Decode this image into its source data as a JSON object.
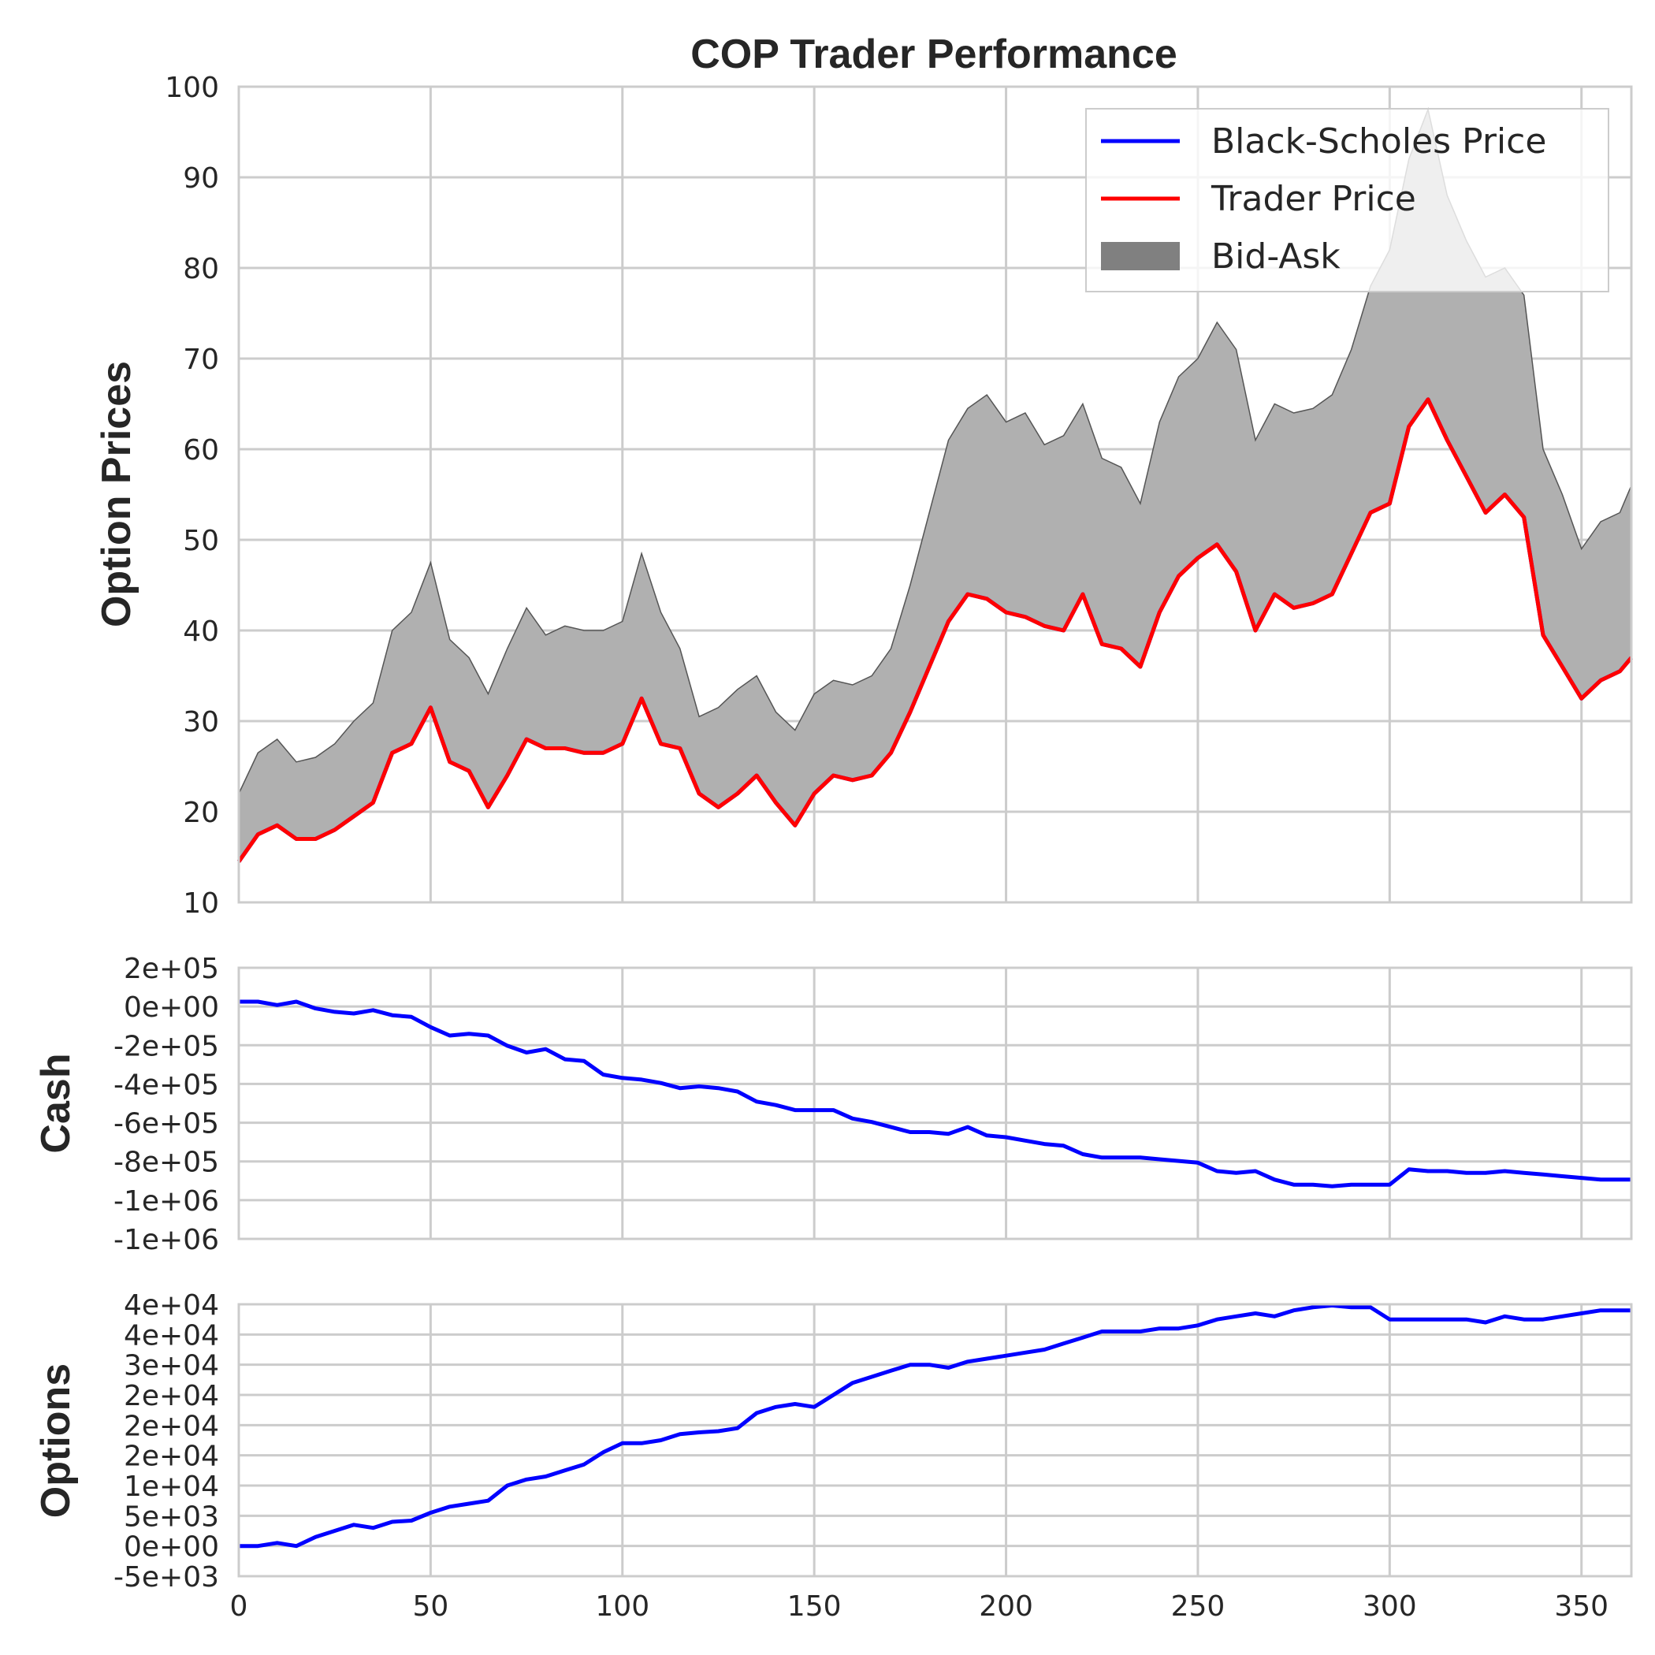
{
  "chart_data": [
    {
      "type": "line",
      "title": "COP Trader Performance",
      "ylabel": "Option Prices",
      "xlim": [
        0,
        363
      ],
      "ylim": [
        10,
        100
      ],
      "grid": true,
      "legend_position": "top-right",
      "x_ticks": [
        "0",
        "50",
        "100",
        "150",
        "200",
        "250",
        "300",
        "350"
      ],
      "y_ticks": [
        "10",
        "20",
        "30",
        "40",
        "50",
        "60",
        "70",
        "80",
        "90",
        "100"
      ],
      "x": [
        0,
        5,
        10,
        15,
        20,
        25,
        30,
        35,
        40,
        45,
        50,
        55,
        60,
        65,
        70,
        75,
        80,
        85,
        90,
        95,
        100,
        105,
        110,
        115,
        120,
        125,
        130,
        135,
        140,
        145,
        150,
        155,
        160,
        165,
        170,
        175,
        180,
        185,
        190,
        195,
        200,
        205,
        210,
        215,
        220,
        225,
        230,
        235,
        240,
        245,
        250,
        255,
        260,
        265,
        270,
        275,
        280,
        285,
        290,
        295,
        300,
        305,
        310,
        315,
        320,
        325,
        330,
        335,
        340,
        345,
        350,
        355,
        360,
        363
      ],
      "series": [
        {
          "name": "Black-Scholes Price",
          "color": "#0000ff",
          "values": [
            14.5,
            17.5,
            18.5,
            17.0,
            17.0,
            18.0,
            19.5,
            21.0,
            26.5,
            27.5,
            31.5,
            25.5,
            24.5,
            20.5,
            24.0,
            28.0,
            27.0,
            27.0,
            26.5,
            26.5,
            27.5,
            32.5,
            27.5,
            27.0,
            22.0,
            20.5,
            22.0,
            24.0,
            21.0,
            18.5,
            22.0,
            24.0,
            23.5,
            24.0,
            26.5,
            31.0,
            36.0,
            41.0,
            44.0,
            43.5,
            42.0,
            41.5,
            40.5,
            40.0,
            44.0,
            38.5,
            38.0,
            36.0,
            42.0,
            46.0,
            48.0,
            49.5,
            46.5,
            40.0,
            44.0,
            42.5,
            43.0,
            44.0,
            48.5,
            53.0,
            54.0,
            62.5,
            65.5,
            61.0,
            57.0,
            53.0,
            55.0,
            52.5,
            39.5,
            36.0,
            32.5,
            34.5,
            35.5,
            37.0
          ]
        },
        {
          "name": "Trader Price",
          "color": "#ff0000",
          "values": [
            14.5,
            17.5,
            18.5,
            17.0,
            17.0,
            18.0,
            19.5,
            21.0,
            26.5,
            27.5,
            31.5,
            25.5,
            24.5,
            20.5,
            24.0,
            28.0,
            27.0,
            27.0,
            26.5,
            26.5,
            27.5,
            32.5,
            27.5,
            27.0,
            22.0,
            20.5,
            22.0,
            24.0,
            21.0,
            18.5,
            22.0,
            24.0,
            23.5,
            24.0,
            26.5,
            31.0,
            36.0,
            41.0,
            44.0,
            43.5,
            42.0,
            41.5,
            40.5,
            40.0,
            44.0,
            38.5,
            38.0,
            36.0,
            42.0,
            46.0,
            48.0,
            49.5,
            46.5,
            40.0,
            44.0,
            42.5,
            43.0,
            44.0,
            48.5,
            53.0,
            54.0,
            62.5,
            65.5,
            61.0,
            57.0,
            53.0,
            55.0,
            52.5,
            39.5,
            36.0,
            32.5,
            34.5,
            35.5,
            37.0
          ]
        },
        {
          "name": "Bid-Ask",
          "color": "#808080",
          "type": "area",
          "lower": [
            14.5,
            17.5,
            18.5,
            17.0,
            17.0,
            18.0,
            19.5,
            21.0,
            26.5,
            27.5,
            31.5,
            25.5,
            24.5,
            20.5,
            24.0,
            28.0,
            27.0,
            27.0,
            26.5,
            26.5,
            27.5,
            32.5,
            27.5,
            27.0,
            22.0,
            20.5,
            22.0,
            24.0,
            21.0,
            18.5,
            22.0,
            24.0,
            23.5,
            24.0,
            26.5,
            31.0,
            36.0,
            41.0,
            44.0,
            43.5,
            42.0,
            41.5,
            40.5,
            40.0,
            44.0,
            38.5,
            38.0,
            36.0,
            42.0,
            46.0,
            48.0,
            49.5,
            46.5,
            40.0,
            44.0,
            42.5,
            43.0,
            44.0,
            48.5,
            53.0,
            54.0,
            62.5,
            65.5,
            61.0,
            57.0,
            53.0,
            55.0,
            52.5,
            39.5,
            36.0,
            32.5,
            34.5,
            35.5,
            37.0
          ],
          "upper": [
            22.0,
            26.5,
            28.0,
            25.5,
            26.0,
            27.5,
            30.0,
            32.0,
            40.0,
            42.0,
            47.5,
            39.0,
            37.0,
            33.0,
            38.0,
            42.5,
            39.5,
            40.5,
            40.0,
            40.0,
            41.0,
            48.5,
            42.0,
            38.0,
            30.5,
            31.5,
            33.5,
            35.0,
            31.0,
            29.0,
            33.0,
            34.5,
            34.0,
            35.0,
            38.0,
            45.0,
            53.0,
            61.0,
            64.5,
            66.0,
            63.0,
            64.0,
            60.5,
            61.5,
            65.0,
            59.0,
            58.0,
            54.0,
            63.0,
            68.0,
            70.0,
            74.0,
            71.0,
            61.0,
            65.0,
            64.0,
            64.5,
            66.0,
            71.0,
            78.0,
            82.0,
            92.0,
            97.5,
            88.0,
            83.0,
            79.0,
            80.0,
            77.0,
            60.0,
            55.0,
            49.0,
            52.0,
            53.0,
            56.0
          ]
        }
      ]
    },
    {
      "type": "line",
      "ylabel": "Cash",
      "xlim": [
        0,
        363
      ],
      "ylim": [
        -1400000,
        200000
      ],
      "grid": true,
      "y_ticks": [
        "2e+05",
        "0e+00",
        "-2e+05",
        "-4e+05",
        "-6e+05",
        "-8e+05",
        "-1e+06",
        "-1e+06"
      ],
      "x": [
        0,
        5,
        10,
        15,
        20,
        25,
        30,
        35,
        40,
        45,
        50,
        55,
        60,
        65,
        70,
        75,
        80,
        85,
        90,
        95,
        100,
        105,
        110,
        115,
        120,
        125,
        130,
        135,
        140,
        145,
        150,
        155,
        160,
        165,
        170,
        175,
        180,
        185,
        190,
        195,
        200,
        205,
        210,
        215,
        220,
        225,
        230,
        235,
        240,
        245,
        250,
        255,
        260,
        265,
        270,
        275,
        280,
        285,
        290,
        295,
        300,
        305,
        310,
        315,
        320,
        325,
        330,
        335,
        340,
        345,
        350,
        355,
        360,
        363
      ],
      "series": [
        {
          "name": "",
          "color": "#0000ff",
          "values": [
            0,
            0,
            -20000,
            0,
            -40000,
            -60000,
            -70000,
            -50000,
            -80000,
            -90000,
            -150000,
            -200000,
            -190000,
            -200000,
            -260000,
            -300000,
            -280000,
            -340000,
            -350000,
            -430000,
            -450000,
            -460000,
            -480000,
            -510000,
            -500000,
            -510000,
            -530000,
            -590000,
            -610000,
            -640000,
            -640000,
            -640000,
            -690000,
            -710000,
            -740000,
            -770000,
            -770000,
            -780000,
            -740000,
            -790000,
            -800000,
            -820000,
            -840000,
            -850000,
            -900000,
            -920000,
            -920000,
            -920000,
            -930000,
            -940000,
            -950000,
            -1000000,
            -1010000,
            -1000000,
            -1050000,
            -1080000,
            -1080000,
            -1090000,
            -1080000,
            -1080000,
            -1080000,
            -990000,
            -1000000,
            -1000000,
            -1010000,
            -1010000,
            -1000000,
            -1010000,
            -1020000,
            -1030000,
            -1040000,
            -1050000,
            -1050000,
            -1050000
          ]
        }
      ]
    },
    {
      "type": "line",
      "ylabel": "Options",
      "xlim": [
        0,
        363
      ],
      "ylim": [
        -5000,
        40000
      ],
      "grid": true,
      "y_ticks": [
        "4e+04",
        "4e+04",
        "3e+04",
        "2e+04",
        "2e+04",
        "2e+04",
        "1e+04",
        "5e+03",
        "0e+00",
        "-5e+03"
      ],
      "x": [
        0,
        5,
        10,
        15,
        20,
        25,
        30,
        35,
        40,
        45,
        50,
        55,
        60,
        65,
        70,
        75,
        80,
        85,
        90,
        95,
        100,
        105,
        110,
        115,
        120,
        125,
        130,
        135,
        140,
        145,
        150,
        155,
        160,
        165,
        170,
        175,
        180,
        185,
        190,
        195,
        200,
        205,
        210,
        215,
        220,
        225,
        230,
        235,
        240,
        245,
        250,
        255,
        260,
        265,
        270,
        275,
        280,
        285,
        290,
        295,
        300,
        305,
        310,
        315,
        320,
        325,
        330,
        335,
        340,
        345,
        350,
        355,
        360,
        363
      ],
      "series": [
        {
          "name": "",
          "color": "#0000ff",
          "values": [
            0,
            0,
            500,
            0,
            1500,
            2500,
            3500,
            3000,
            4000,
            4200,
            5500,
            6500,
            7000,
            7500,
            10000,
            11000,
            11500,
            12500,
            13500,
            15500,
            17000,
            17000,
            17500,
            18500,
            18800,
            19000,
            19500,
            22000,
            23000,
            23500,
            23000,
            25000,
            27000,
            28000,
            29000,
            30000,
            30000,
            29500,
            30500,
            31000,
            31500,
            32000,
            32500,
            33500,
            34500,
            35500,
            35500,
            35500,
            36000,
            36000,
            36500,
            37500,
            38000,
            38500,
            38000,
            39000,
            39500,
            39800,
            39500,
            39500,
            37500,
            37500,
            37500,
            37500,
            37500,
            37000,
            38000,
            37500,
            37500,
            38000,
            38500,
            39000,
            39000,
            39000
          ]
        }
      ]
    }
  ]
}
